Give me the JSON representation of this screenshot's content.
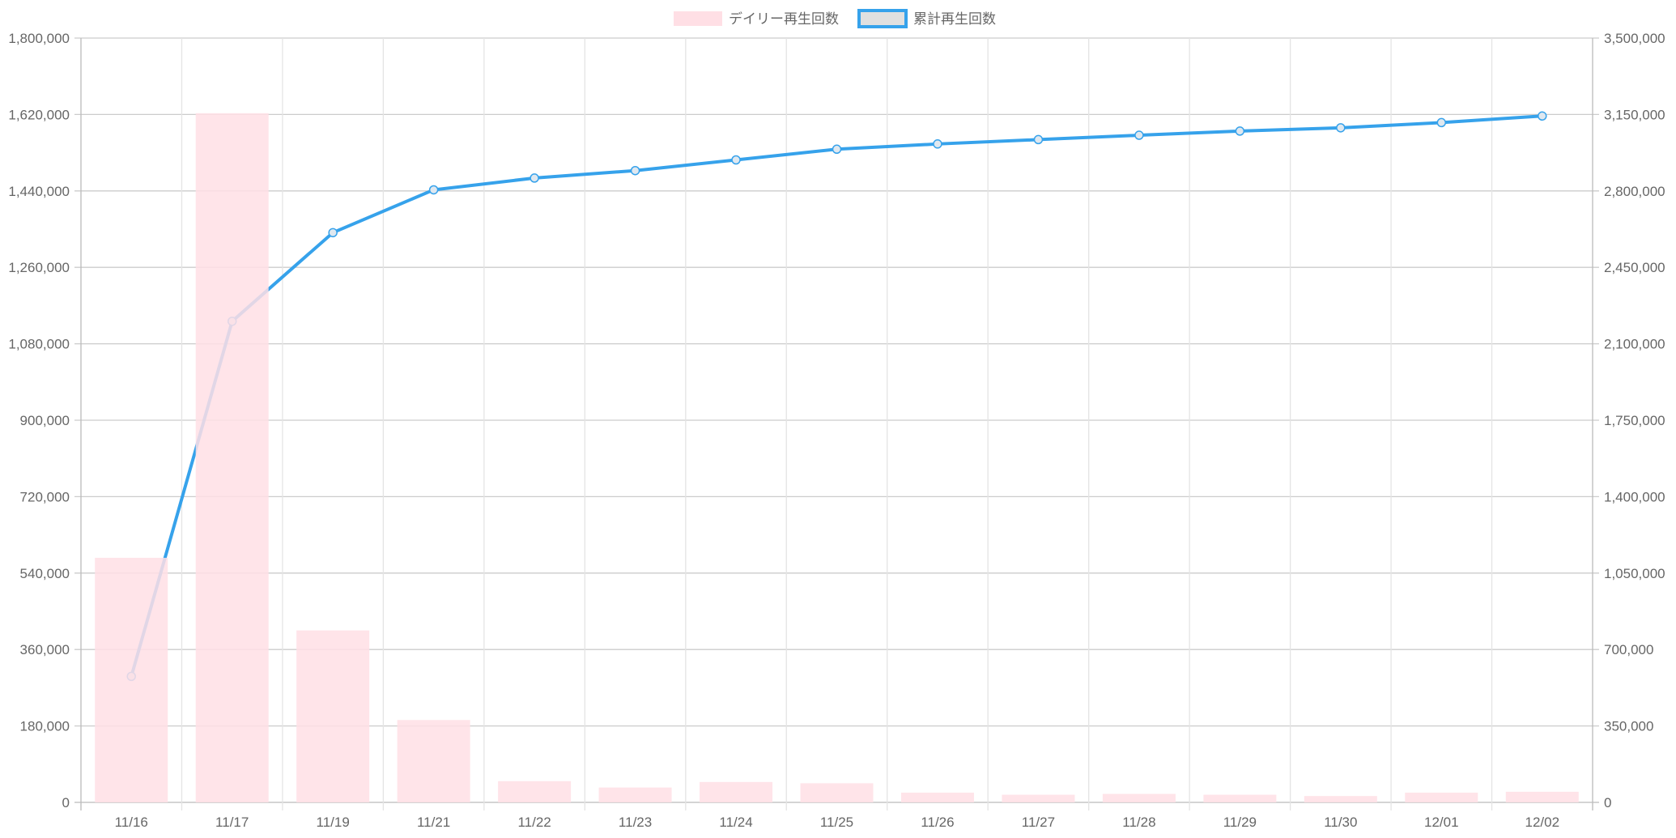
{
  "chart_data": {
    "type": "bar+line",
    "title": "",
    "categories": [
      "11/16",
      "11/17",
      "11/19",
      "11/21",
      "11/22",
      "11/23",
      "11/24",
      "11/25",
      "11/26",
      "11/27",
      "11/28",
      "11/29",
      "11/30",
      "12/01",
      "12/02"
    ],
    "series": [
      {
        "name": "デイリー再生回数",
        "type": "bar",
        "axis": "left",
        "color": "#ffdfe5",
        "values": [
          576000,
          1623000,
          405000,
          194000,
          50000,
          35000,
          48000,
          45000,
          23000,
          18000,
          20000,
          18000,
          15000,
          23000,
          25000
        ]
      },
      {
        "name": "累計再生回数",
        "type": "line",
        "axis": "right",
        "color": "#36a2eb",
        "values": [
          577000,
          2203000,
          2609000,
          2805000,
          2859000,
          2893000,
          2942000,
          2991000,
          3015000,
          3035000,
          3055000,
          3074000,
          3089000,
          3113000,
          3143000
        ]
      }
    ],
    "left_axis": {
      "min": 0,
      "max": 1800000,
      "ticks": [
        "0",
        "180,000",
        "360,000",
        "540,000",
        "720,000",
        "900,000",
        "1,080,000",
        "1,260,000",
        "1,440,000",
        "1,620,000",
        "1,800,000"
      ]
    },
    "right_axis": {
      "min": 0,
      "max": 3500000,
      "ticks": [
        "0",
        "350,000",
        "700,000",
        "1,050,000",
        "1,400,000",
        "1,750,000",
        "2,100,000",
        "2,450,000",
        "2,800,000",
        "3,150,000",
        "3,500,000"
      ]
    },
    "grid": true,
    "legend_position": "top-center"
  }
}
